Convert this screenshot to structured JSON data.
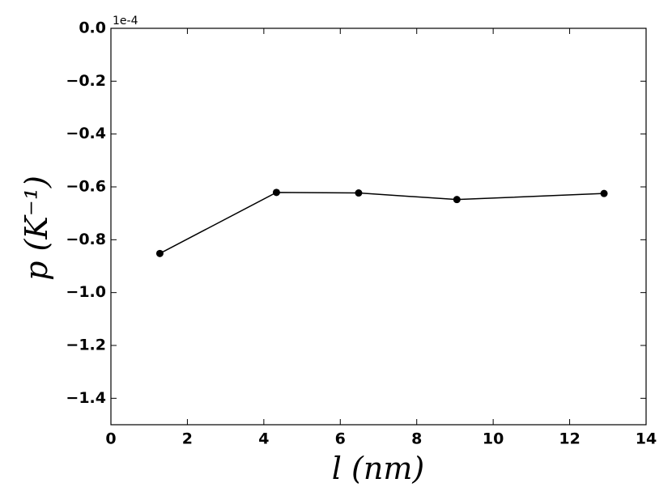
{
  "chart_data": {
    "type": "line",
    "x_label": "l (nm)",
    "y_label": "p (K⁻¹)",
    "y_offset_text": "1e-4",
    "x": [
      1.28,
      4.33,
      6.48,
      9.05,
      12.9
    ],
    "series": [
      {
        "color": "#000000",
        "values": [
          -0.852,
          -0.621,
          -0.623,
          -0.648,
          -0.625
        ]
      }
    ],
    "xlim": [
      0,
      14
    ],
    "xticks": [
      0,
      2,
      4,
      6,
      8,
      10,
      12,
      14
    ],
    "ylim": [
      -1.5,
      0
    ],
    "yticks": [
      {
        "value": 0,
        "label": "0.0"
      },
      {
        "value": -0.2,
        "label": "−0.2"
      },
      {
        "value": -0.4,
        "label": "−0.4"
      },
      {
        "value": -0.6,
        "label": "−0.6"
      },
      {
        "value": -0.8,
        "label": "−0.8"
      },
      {
        "value": -1.0,
        "label": "−1.0"
      },
      {
        "value": -1.2,
        "label": "−1.2"
      },
      {
        "value": -1.4,
        "label": "−1.4"
      }
    ],
    "grid": false
  }
}
